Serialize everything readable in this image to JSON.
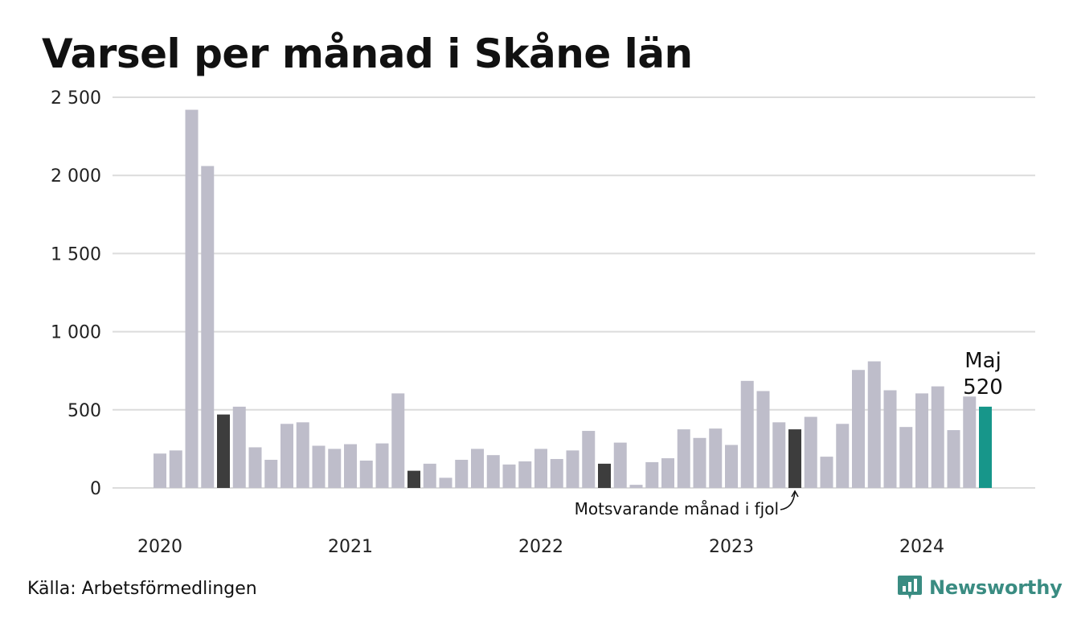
{
  "title": "Varsel per månad i Skåne län",
  "source": "Källa: Arbetsförmedlingen",
  "brand": "Newsworthy",
  "colors": {
    "bar_default": "#bebdca",
    "bar_same_month": "#3d3d3d",
    "bar_current": "#17968a",
    "grid": "#dcdcdc",
    "brand": "#3a8c82"
  },
  "chart_data": {
    "type": "bar",
    "title": "Varsel per månad i Skåne län",
    "ylim": [
      0,
      2500
    ],
    "y_ticks": [
      {
        "value": 0,
        "label": "0"
      },
      {
        "value": 500,
        "label": "500"
      },
      {
        "value": 1000,
        "label": "1 000"
      },
      {
        "value": 1500,
        "label": "1 500"
      },
      {
        "value": 2000,
        "label": "2 000"
      },
      {
        "value": 2500,
        "label": "2 500"
      }
    ],
    "x_ticks": [
      {
        "index": 0,
        "label": "2020"
      },
      {
        "index": 12,
        "label": "2021"
      },
      {
        "index": 24,
        "label": "2022"
      },
      {
        "index": 36,
        "label": "2023"
      },
      {
        "index": 48,
        "label": "2024"
      }
    ],
    "grid": true,
    "values": [
      220,
      240,
      2420,
      2060,
      470,
      520,
      260,
      180,
      410,
      420,
      270,
      250,
      280,
      175,
      285,
      605,
      110,
      155,
      65,
      180,
      250,
      210,
      150,
      170,
      250,
      185,
      240,
      365,
      155,
      290,
      20,
      165,
      190,
      375,
      320,
      380,
      275,
      685,
      620,
      420,
      375,
      455,
      200,
      410,
      755,
      810,
      625,
      390,
      605,
      650,
      370,
      585,
      520
    ],
    "same_month_indices": [
      4,
      16,
      28,
      40
    ],
    "current_index": 52,
    "annotation": {
      "text": "Motsvarande månad i fjol",
      "index": 40
    },
    "highlight": {
      "label": "Maj",
      "value": "520",
      "index": 52
    }
  }
}
